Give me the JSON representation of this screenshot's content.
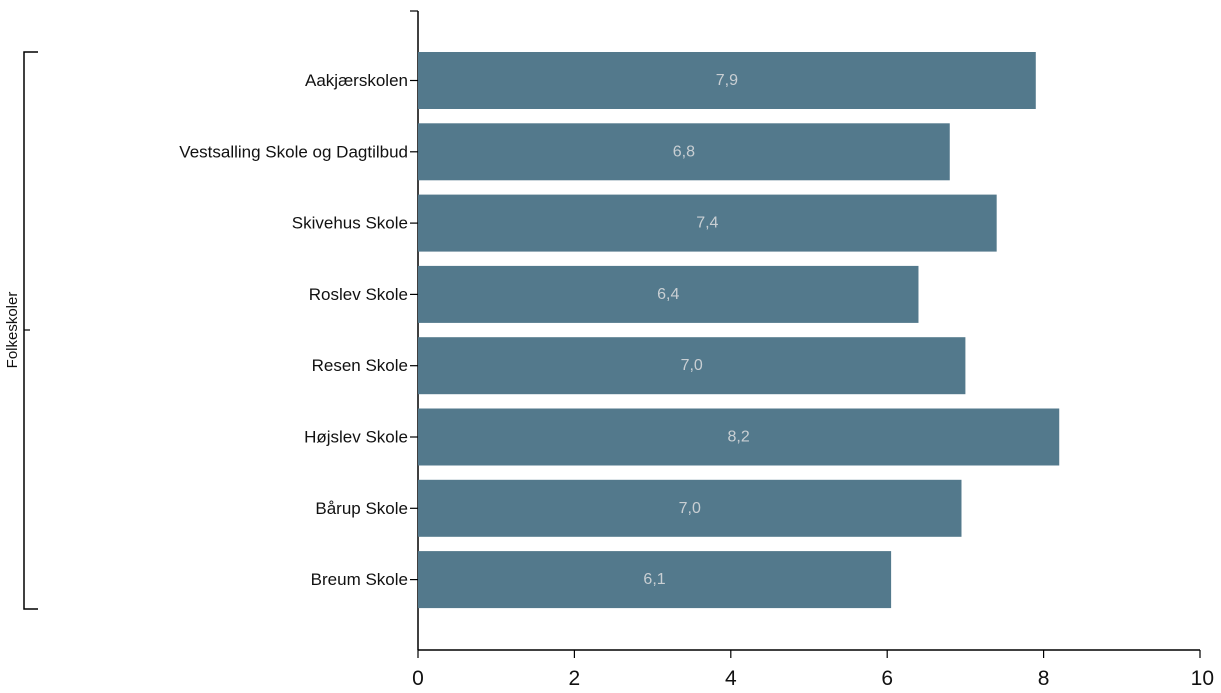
{
  "chart_data": {
    "type": "bar",
    "orientation": "horizontal",
    "group_label": "Folkeskoler",
    "categories": [
      "Aakjærskolen",
      "Vestsalling Skole og Dagtilbud",
      "Skivehus Skole",
      "Roslev Skole",
      "Resen Skole",
      "Højslev Skole",
      "Bårup Skole",
      "Breum Skole"
    ],
    "values": [
      7.9,
      6.8,
      7.4,
      6.4,
      7.0,
      8.2,
      6.95,
      6.05
    ],
    "data_labels": [
      "7,9",
      "6,8",
      "7,4",
      "6,4",
      "7,0",
      "8,2",
      "7,0",
      "6,1"
    ],
    "xlim": [
      0,
      10
    ],
    "x_ticks": [
      "0",
      "2",
      "4",
      "6",
      "8",
      "10"
    ],
    "xlabel": "",
    "ylabel": "",
    "grid": false,
    "bar_color": "#53798c",
    "label_color": "#c9cfd3"
  }
}
